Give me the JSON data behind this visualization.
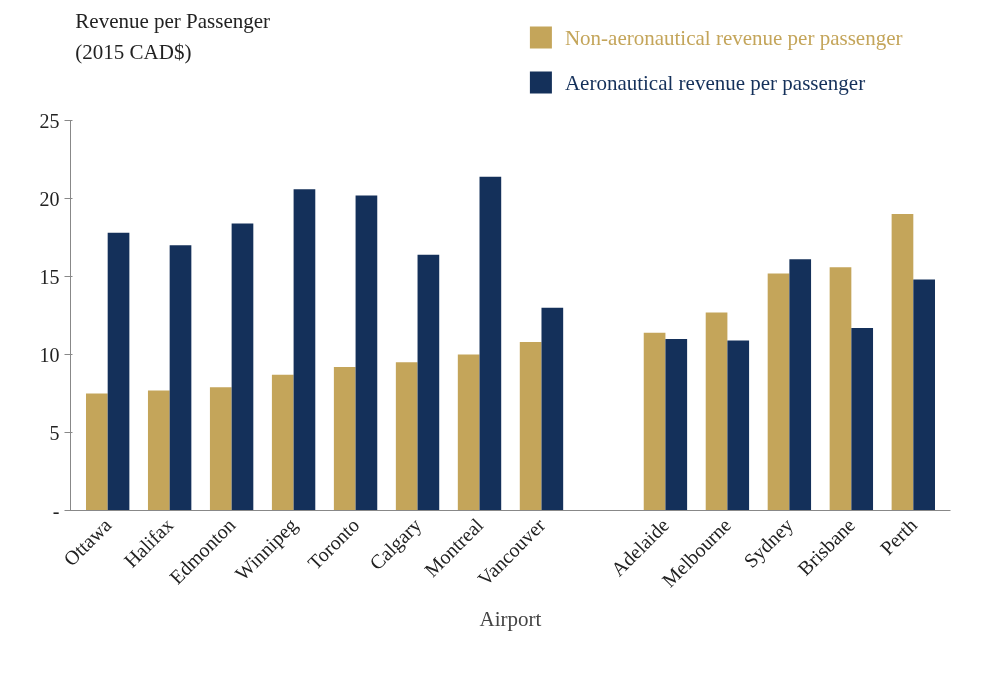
{
  "chart_data": {
    "type": "bar",
    "ylabel": "Revenue per Passenger\n(2015 CAD$)",
    "xlabel": "Airport",
    "categories": [
      "Ottawa",
      "Halifax",
      "Edmonton",
      "Winnipeg",
      "Toronto",
      "Calgary",
      "Montreal",
      "Vancouver",
      null,
      "Adelaide",
      "Melbourne",
      "Sydney",
      "Brisbane",
      "Perth"
    ],
    "series": [
      {
        "name": "Non-aeronautical revenue per passenger",
        "color": "#c4a55a",
        "values": [
          7.5,
          7.7,
          7.9,
          8.7,
          9.2,
          9.5,
          10.0,
          10.8,
          null,
          11.4,
          12.7,
          15.2,
          15.6,
          19.0
        ]
      },
      {
        "name": "Aeronautical revenue per passenger",
        "color": "#14305a",
        "values": [
          17.8,
          17.0,
          18.4,
          20.6,
          20.2,
          16.4,
          21.4,
          13.0,
          null,
          11.0,
          10.9,
          16.1,
          11.7,
          14.8
        ]
      }
    ],
    "ylim": [
      0,
      25
    ],
    "yticks": [
      {
        "value": 0,
        "label": "-"
      },
      5,
      10,
      15,
      20,
      25
    ],
    "grid": false,
    "legend": "top right"
  }
}
